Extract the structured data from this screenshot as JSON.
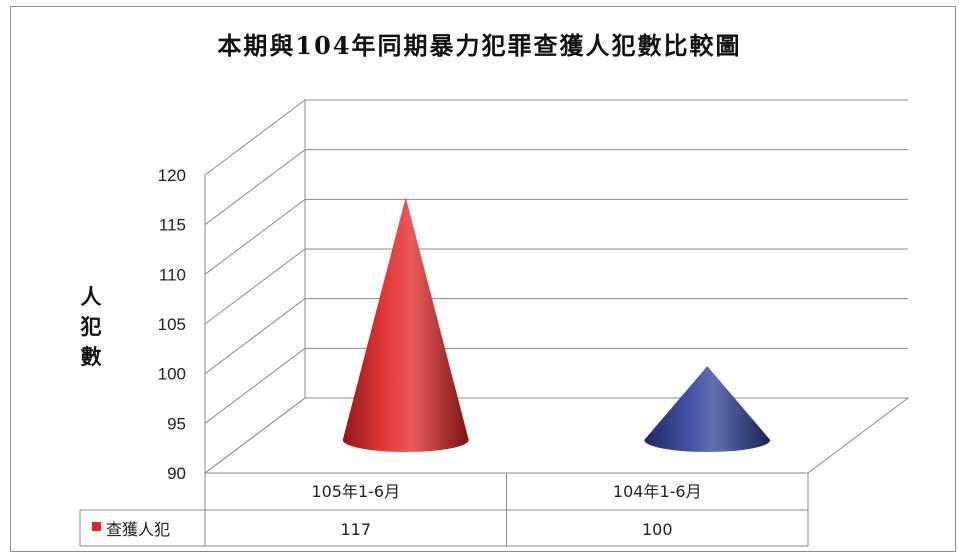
{
  "chart_data": {
    "type": "bar",
    "style": "3d-cone",
    "title": "本期與104年同期暴力犯罪查獲人犯數比較圖",
    "ylabel": "人犯數",
    "xlabel": "",
    "categories": [
      "105年1-6月",
      "104年1-6月"
    ],
    "series": [
      {
        "name": "查獲人犯",
        "values": [
          117,
          100
        ],
        "colors": [
          "#e32424",
          "#2e3f9a"
        ]
      }
    ],
    "ylim": [
      90,
      120
    ],
    "yticks": [
      "90",
      "95",
      "100",
      "105",
      "110",
      "115",
      "120"
    ],
    "grid": true,
    "legend": "data-table",
    "data_table": {
      "row_label": "查獲人犯",
      "values": [
        "117",
        "100"
      ],
      "legend_color": "#e32424"
    }
  }
}
